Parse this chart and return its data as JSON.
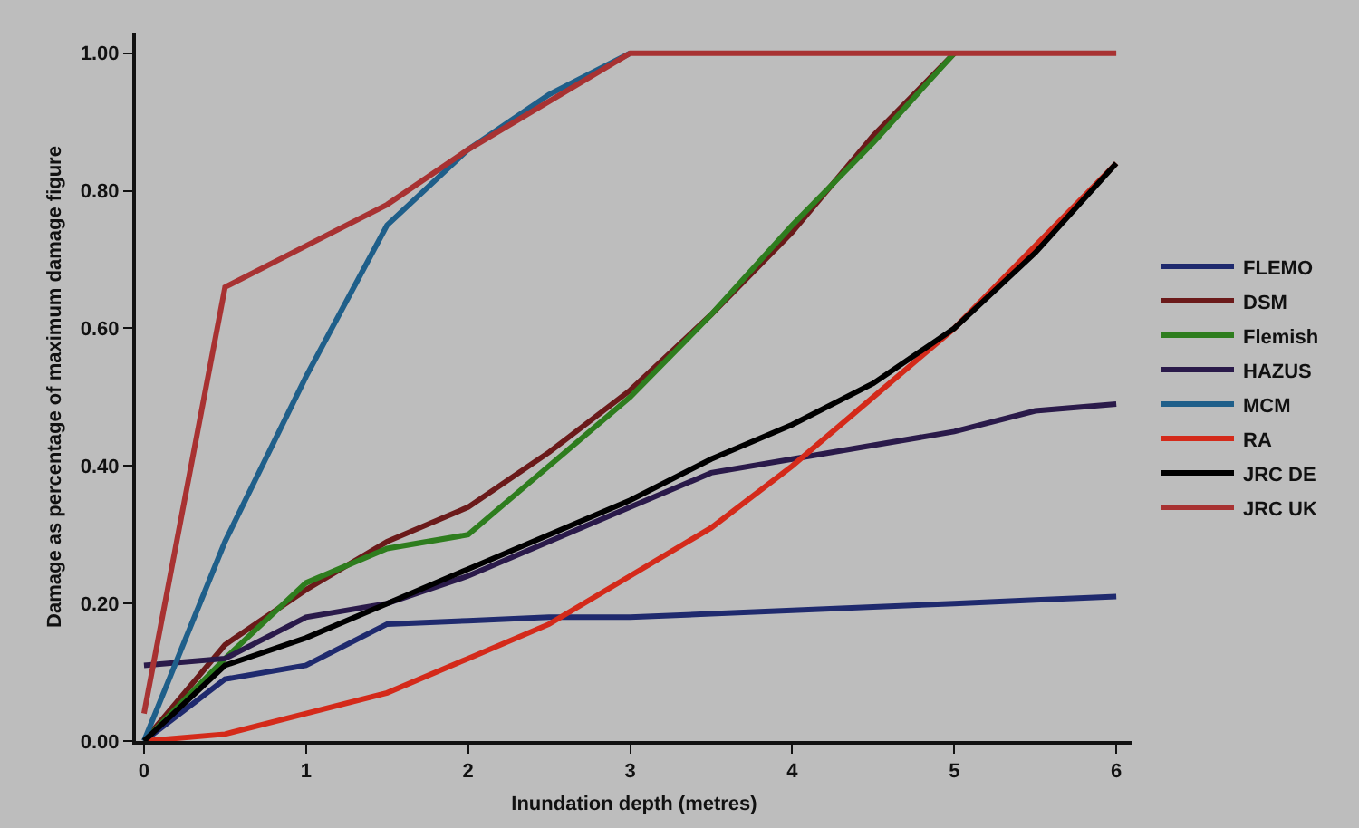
{
  "chart_data": {
    "type": "line",
    "xlabel": "Inundation depth (metres)",
    "ylabel": "Damage as percentage of maximum damage figure",
    "x": [
      0,
      0.5,
      1,
      1.5,
      2,
      2.5,
      3,
      3.5,
      4,
      4.5,
      5,
      5.5,
      6
    ],
    "xlim": [
      -0.05,
      6.1
    ],
    "xticks": [
      0,
      1,
      2,
      3,
      4,
      5,
      6
    ],
    "ylim": [
      0,
      1.03
    ],
    "yticks": [
      {
        "value": 0,
        "label": "0.00"
      },
      {
        "value": 0.2,
        "label": "0.20"
      },
      {
        "value": 0.4,
        "label": "0.40"
      },
      {
        "value": 0.6,
        "label": "0.60"
      },
      {
        "value": 0.8,
        "label": "0.80"
      },
      {
        "value": 1,
        "label": "1.00"
      }
    ],
    "grid": false,
    "legend": "right",
    "marker": "none",
    "line_style": "solid",
    "series": [
      {
        "name": "FLEMO",
        "color": "#1f2a6e",
        "values": [
          0,
          0.09,
          0.11,
          0.17,
          0.175,
          0.18,
          0.18,
          0.185,
          0.19,
          0.195,
          0.2,
          0.205,
          0.21
        ]
      },
      {
        "name": "DSM",
        "color": "#6b1a1a",
        "values": [
          0,
          0.14,
          0.22,
          0.29,
          0.34,
          0.42,
          0.51,
          0.62,
          0.74,
          0.88,
          1.0,
          null,
          null
        ]
      },
      {
        "name": "Flemish",
        "color": "#2e7d1e",
        "values": [
          0,
          0.12,
          0.23,
          0.28,
          0.3,
          0.4,
          0.5,
          0.62,
          0.75,
          0.87,
          1.0,
          null,
          null
        ]
      },
      {
        "name": "HAZUS",
        "color": "#2a1a4a",
        "values": [
          0.11,
          0.12,
          0.18,
          0.2,
          0.24,
          0.29,
          0.34,
          0.39,
          0.41,
          0.43,
          0.45,
          0.48,
          0.49
        ]
      },
      {
        "name": "MCM",
        "color": "#1f5f8a",
        "values": [
          0,
          0.29,
          0.53,
          0.75,
          0.86,
          0.94,
          1.0,
          null,
          null,
          null,
          null,
          null,
          null
        ]
      },
      {
        "name": "RA",
        "color": "#d42a1a",
        "values": [
          0,
          0.01,
          0.04,
          0.07,
          0.12,
          0.17,
          0.24,
          0.31,
          0.4,
          0.5,
          0.6,
          0.72,
          0.84
        ]
      },
      {
        "name": "JRC DE",
        "color": "#000000",
        "values": [
          0,
          0.11,
          0.15,
          0.2,
          0.25,
          0.3,
          0.35,
          0.41,
          0.46,
          0.52,
          0.6,
          0.71,
          0.84
        ]
      },
      {
        "name": "JRC UK",
        "color": "#a83232",
        "values": [
          0.04,
          0.66,
          0.72,
          0.78,
          0.86,
          0.93,
          1.0,
          1.0,
          1.0,
          1.0,
          1.0,
          1.0,
          1.0
        ]
      }
    ]
  }
}
